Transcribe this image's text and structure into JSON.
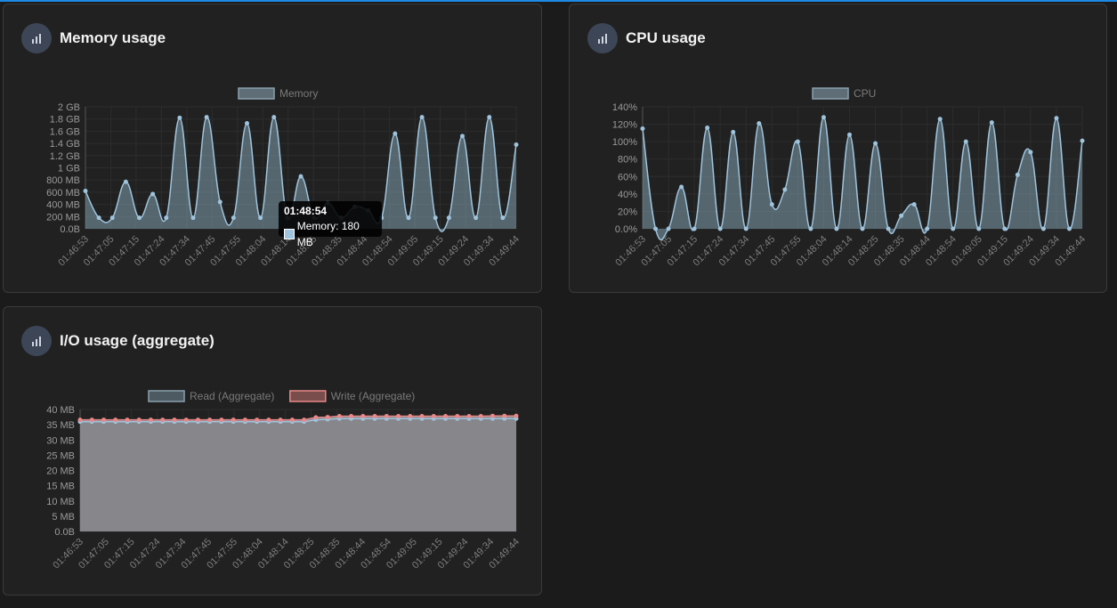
{
  "cards": {
    "memory": {
      "title": "Memory usage",
      "icon": "bar-chart-icon"
    },
    "cpu": {
      "title": "CPU usage",
      "icon": "bar-chart-icon"
    },
    "io": {
      "title": "I/O usage (aggregate)",
      "icon": "bar-chart-icon"
    }
  },
  "tooltip": {
    "title": "01:48:54",
    "label": "Memory: 180 MB"
  },
  "colors": {
    "background": "#1b1b1b",
    "card": "#212121",
    "accent": "#1e88e5",
    "memory_line": "#9ec3dc",
    "memory_fill": "#4e5e66",
    "read_line": "#9ec3dc",
    "write_line": "#e88888",
    "io_fill": "#86858a"
  },
  "chart_data": [
    {
      "id": "memory",
      "type": "area",
      "title": "Memory usage",
      "legend": [
        "Memory"
      ],
      "legend_position": "top",
      "grid": true,
      "x_ticks": [
        "01:46:53",
        "01:47:05",
        "01:47:15",
        "01:47:24",
        "01:47:34",
        "01:47:45",
        "01:47:55",
        "01:48:04",
        "01:48:14",
        "01:48:25",
        "01:48:35",
        "01:48:44",
        "01:48:54",
        "01:49:05",
        "01:49:15",
        "01:49:24",
        "01:49:34",
        "01:49:44"
      ],
      "y_ticks": [
        "0.0B",
        "200 MB",
        "400 MB",
        "600 MB",
        "800 MB",
        "1 GB",
        "1.2 GB",
        "1.4 GB",
        "1.6 GB",
        "1.8 GB",
        "2 GB"
      ],
      "ylim": [
        0,
        2
      ],
      "y_unit": "GB",
      "series": [
        {
          "name": "Memory",
          "values": [
            0.62,
            0.18,
            0.18,
            0.77,
            0.18,
            0.57,
            0.18,
            1.82,
            0.18,
            1.83,
            0.44,
            0.18,
            1.73,
            0.18,
            1.83,
            0.18,
            0.86,
            0.18,
            0.42,
            0.18,
            0.36,
            0.3,
            0.18,
            1.56,
            0.18,
            1.83,
            0.18,
            0.18,
            1.52,
            0.18,
            1.83,
            0.18,
            1.38
          ]
        }
      ]
    },
    {
      "id": "cpu",
      "type": "area",
      "title": "CPU usage",
      "legend": [
        "CPU"
      ],
      "legend_position": "top",
      "grid": true,
      "x_ticks": [
        "01:46:53",
        "01:47:05",
        "01:47:15",
        "01:47:24",
        "01:47:34",
        "01:47:45",
        "01:47:55",
        "01:48:04",
        "01:48:14",
        "01:48:25",
        "01:48:35",
        "01:48:44",
        "01:48:54",
        "01:49:05",
        "01:49:15",
        "01:49:24",
        "01:49:34",
        "01:49:44"
      ],
      "y_ticks": [
        "0.0%",
        "20%",
        "40%",
        "60%",
        "80%",
        "100%",
        "120%",
        "140%"
      ],
      "ylim": [
        0,
        140
      ],
      "y_unit": "%",
      "series": [
        {
          "name": "CPU",
          "values": [
            115,
            0,
            0,
            48,
            0,
            116,
            0,
            111,
            0,
            121,
            28,
            45,
            100,
            0,
            128,
            0,
            108,
            0,
            98,
            0,
            15,
            28,
            0,
            126,
            0,
            100,
            0,
            122,
            0,
            62,
            88,
            0,
            127,
            0,
            101
          ]
        }
      ]
    },
    {
      "id": "io",
      "type": "area",
      "title": "I/O usage (aggregate)",
      "legend": [
        "Read (Aggregate)",
        "Write (Aggregate)"
      ],
      "legend_position": "top",
      "grid": true,
      "x_ticks": [
        "01:46:53",
        "01:47:05",
        "01:47:15",
        "01:47:24",
        "01:47:34",
        "01:47:45",
        "01:47:55",
        "01:48:04",
        "01:48:14",
        "01:48:25",
        "01:48:35",
        "01:48:44",
        "01:48:54",
        "01:49:05",
        "01:49:15",
        "01:49:24",
        "01:49:34",
        "01:49:44"
      ],
      "y_ticks": [
        "0.0B",
        "5 MB",
        "10 MB",
        "15 MB",
        "20 MB",
        "25 MB",
        "30 MB",
        "35 MB",
        "40 MB"
      ],
      "ylim": [
        0,
        40
      ],
      "y_unit": "MB",
      "series": [
        {
          "name": "Read (Aggregate)",
          "values": [
            36.0,
            36.0,
            36.0,
            36.0,
            36.0,
            36.0,
            36.0,
            36.0,
            36.0,
            36.0,
            36.0,
            36.0,
            36.0,
            36.0,
            36.0,
            36.0,
            36.0,
            36.0,
            36.0,
            36.0,
            36.6,
            36.8,
            37.0,
            37.0,
            37.0,
            37.0,
            37.0,
            37.0,
            37.0,
            37.0,
            37.0,
            37.0,
            37.0,
            37.0,
            37.0,
            37.0,
            37.0,
            37.0
          ]
        },
        {
          "name": "Write (Aggregate)",
          "values": [
            36.6,
            36.6,
            36.6,
            36.6,
            36.6,
            36.6,
            36.6,
            36.6,
            36.6,
            36.6,
            36.6,
            36.6,
            36.6,
            36.6,
            36.6,
            36.6,
            36.6,
            36.6,
            36.6,
            36.6,
            37.4,
            37.5,
            37.8,
            37.8,
            37.8,
            37.8,
            37.8,
            37.8,
            37.8,
            37.8,
            37.8,
            37.8,
            37.8,
            37.8,
            37.8,
            37.9,
            37.9,
            37.9
          ]
        }
      ]
    }
  ]
}
